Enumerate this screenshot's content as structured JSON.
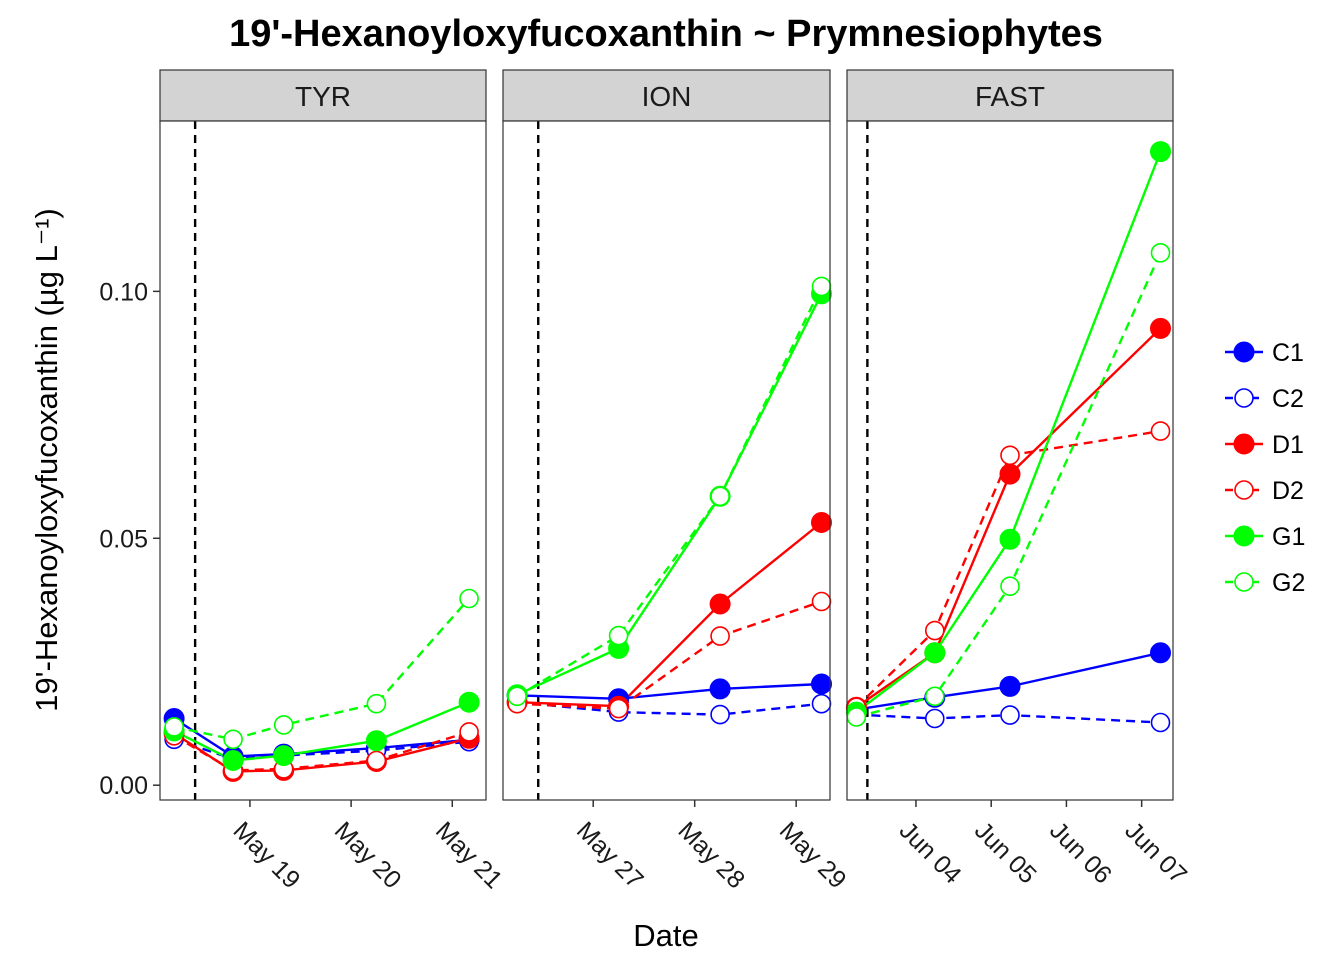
{
  "chart_data": {
    "type": "line",
    "title": "19'-Hexanoyloxyfucoxanthin ~ Prymnesiophytes",
    "xlabel": "Date",
    "ylabel": "19'-Hexanoyloxyfucoxanthin (µg L⁻¹)",
    "ylim": [
      -0.003,
      0.1345
    ],
    "yticks": [
      0.0,
      0.05,
      0.1
    ],
    "ytick_labels": [
      "0.00",
      "0.05",
      "0.10"
    ],
    "legend_position": "right",
    "panels": [
      {
        "name": "TYR",
        "xlim": [
          "2015-05-18T02:40",
          "2015-05-21T08:00"
        ],
        "vline": "2015-05-18T11:00",
        "xticks": [
          "2015-05-19",
          "2015-05-20",
          "2015-05-21"
        ],
        "xtick_labels": [
          "May 19",
          "May 20",
          "May 21"
        ],
        "series": [
          {
            "name": "C1",
            "points": [
              [
                "2015-05-18T06:00",
                0.0135
              ],
              [
                "2015-05-18T20:00",
                0.0058
              ],
              [
                "2015-05-19T08:00",
                0.0063
              ],
              [
                "2015-05-20T06:00",
                0.0075
              ],
              [
                "2015-05-21T04:00",
                0.0092
              ]
            ]
          },
          {
            "name": "C2",
            "points": [
              [
                "2015-05-18T06:00",
                0.0093
              ],
              [
                "2015-05-18T20:00",
                0.0053
              ],
              [
                "2015-05-19T08:00",
                0.006
              ],
              [
                "2015-05-20T06:00",
                0.007
              ],
              [
                "2015-05-21T04:00",
                0.0088
              ]
            ]
          },
          {
            "name": "D1",
            "points": [
              [
                "2015-05-18T06:00",
                0.0105
              ],
              [
                "2015-05-18T20:00",
                0.0028
              ],
              [
                "2015-05-19T08:00",
                0.003
              ],
              [
                "2015-05-20T06:00",
                0.0048
              ],
              [
                "2015-05-21T04:00",
                0.0095
              ]
            ]
          },
          {
            "name": "D2",
            "points": [
              [
                "2015-05-18T06:00",
                0.01
              ],
              [
                "2015-05-18T20:00",
                0.003
              ],
              [
                "2015-05-19T08:00",
                0.0033
              ],
              [
                "2015-05-20T06:00",
                0.005
              ],
              [
                "2015-05-21T04:00",
                0.0108
              ]
            ]
          },
          {
            "name": "G1",
            "points": [
              [
                "2015-05-18T06:00",
                0.011
              ],
              [
                "2015-05-18T20:00",
                0.005
              ],
              [
                "2015-05-19T08:00",
                0.006
              ],
              [
                "2015-05-20T06:00",
                0.009
              ],
              [
                "2015-05-21T04:00",
                0.0168
              ]
            ]
          },
          {
            "name": "G2",
            "points": [
              [
                "2015-05-18T06:00",
                0.0118
              ],
              [
                "2015-05-18T20:00",
                0.0093
              ],
              [
                "2015-05-19T08:00",
                0.0122
              ],
              [
                "2015-05-20T06:00",
                0.0165
              ],
              [
                "2015-05-21T04:00",
                0.0378
              ]
            ]
          }
        ]
      },
      {
        "name": "ION",
        "xlim": [
          "2015-05-26T02:40",
          "2015-05-29T08:00"
        ],
        "vline": "2015-05-26T11:00",
        "xticks": [
          "2015-05-27",
          "2015-05-28",
          "2015-05-29"
        ],
        "xtick_labels": [
          "May 27",
          "May 28",
          "May 29"
        ],
        "series": [
          {
            "name": "C1",
            "points": [
              [
                "2015-05-26T06:00",
                0.0182
              ],
              [
                "2015-05-27T06:00",
                0.0175
              ],
              [
                "2015-05-28T06:00",
                0.0195
              ],
              [
                "2015-05-29T06:00",
                0.0205
              ]
            ]
          },
          {
            "name": "C2",
            "points": [
              [
                "2015-05-26T06:00",
                0.0168
              ],
              [
                "2015-05-27T06:00",
                0.0148
              ],
              [
                "2015-05-28T06:00",
                0.0143
              ],
              [
                "2015-05-29T06:00",
                0.0165
              ]
            ]
          },
          {
            "name": "D1",
            "points": [
              [
                "2015-05-26T06:00",
                0.0168
              ],
              [
                "2015-05-27T06:00",
                0.016
              ],
              [
                "2015-05-28T06:00",
                0.0367
              ],
              [
                "2015-05-29T06:00",
                0.0532
              ]
            ]
          },
          {
            "name": "D2",
            "points": [
              [
                "2015-05-26T06:00",
                0.0165
              ],
              [
                "2015-05-27T06:00",
                0.0155
              ],
              [
                "2015-05-28T06:00",
                0.0302
              ],
              [
                "2015-05-29T06:00",
                0.0372
              ]
            ]
          },
          {
            "name": "G1",
            "points": [
              [
                "2015-05-26T06:00",
                0.0183
              ],
              [
                "2015-05-27T06:00",
                0.0277
              ],
              [
                "2015-05-28T06:00",
                0.0585
              ],
              [
                "2015-05-29T06:00",
                0.0995
              ]
            ]
          },
          {
            "name": "G2",
            "points": [
              [
                "2015-05-26T06:00",
                0.018
              ],
              [
                "2015-05-27T06:00",
                0.0303
              ],
              [
                "2015-05-28T06:00",
                0.0585
              ],
              [
                "2015-05-29T06:00",
                0.101
              ]
            ]
          }
        ]
      },
      {
        "name": "FAST",
        "xlim": [
          "2015-06-03T02:00",
          "2015-06-07T10:00"
        ],
        "vline": "2015-06-03T08:30",
        "xticks": [
          "2015-06-04",
          "2015-06-05",
          "2015-06-06",
          "2015-06-07"
        ],
        "xtick_labels": [
          "Jun 04",
          "Jun 05",
          "Jun 06",
          "Jun 07"
        ],
        "series": [
          {
            "name": "C1",
            "points": [
              [
                "2015-06-03T05:00",
                0.0153
              ],
              [
                "2015-06-04T06:00",
                0.0178
              ],
              [
                "2015-06-05T06:00",
                0.02
              ],
              [
                "2015-06-07T06:00",
                0.0268
              ]
            ]
          },
          {
            "name": "C2",
            "points": [
              [
                "2015-06-03T05:00",
                0.0143
              ],
              [
                "2015-06-04T06:00",
                0.0135
              ],
              [
                "2015-06-05T06:00",
                0.0142
              ],
              [
                "2015-06-07T06:00",
                0.0127
              ]
            ]
          },
          {
            "name": "D1",
            "points": [
              [
                "2015-06-03T05:00",
                0.0158
              ],
              [
                "2015-06-04T06:00",
                0.0268
              ],
              [
                "2015-06-05T06:00",
                0.063
              ],
              [
                "2015-06-07T06:00",
                0.0925
              ]
            ]
          },
          {
            "name": "D2",
            "points": [
              [
                "2015-06-03T05:00",
                0.0158
              ],
              [
                "2015-06-04T06:00",
                0.0313
              ],
              [
                "2015-06-05T06:00",
                0.0668
              ],
              [
                "2015-06-07T06:00",
                0.0717
              ]
            ]
          },
          {
            "name": "G1",
            "points": [
              [
                "2015-06-03T05:00",
                0.0148
              ],
              [
                "2015-06-04T06:00",
                0.0268
              ],
              [
                "2015-06-05T06:00",
                0.0498
              ],
              [
                "2015-06-07T06:00",
                0.1283
              ]
            ]
          },
          {
            "name": "G2",
            "points": [
              [
                "2015-06-03T05:00",
                0.0138
              ],
              [
                "2015-06-04T06:00",
                0.018
              ],
              [
                "2015-06-05T06:00",
                0.0403
              ],
              [
                "2015-06-07T06:00",
                0.1078
              ]
            ]
          }
        ]
      }
    ],
    "legend": [
      {
        "name": "C1",
        "color": "#0000ff",
        "filled": true,
        "dashed": false
      },
      {
        "name": "C2",
        "color": "#0000ff",
        "filled": false,
        "dashed": true
      },
      {
        "name": "D1",
        "color": "#ff0000",
        "filled": true,
        "dashed": false
      },
      {
        "name": "D2",
        "color": "#ff0000",
        "filled": false,
        "dashed": true
      },
      {
        "name": "G1",
        "color": "#00ff00",
        "filled": true,
        "dashed": false
      },
      {
        "name": "G2",
        "color": "#00ff00",
        "filled": false,
        "dashed": true
      }
    ]
  }
}
